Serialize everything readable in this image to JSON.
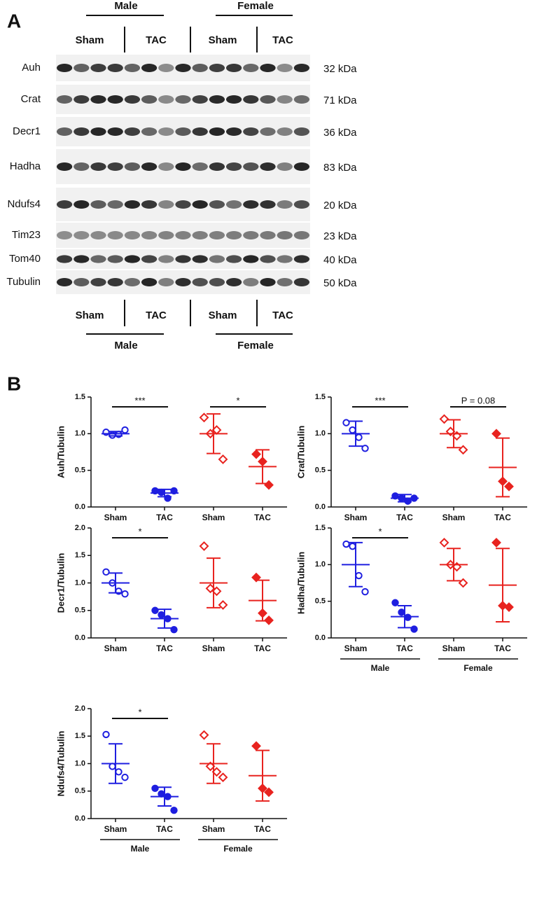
{
  "panel_a": {
    "label": "A",
    "top_groups": [
      "Male",
      "Female"
    ],
    "conditions": [
      "Sham",
      "TAC",
      "Sham",
      "TAC"
    ],
    "bands": [
      {
        "protein": "Auh",
        "size": "32 kDa"
      },
      {
        "protein": "Crat",
        "size": "71 kDa"
      },
      {
        "protein": "Decr1",
        "size": "36 kDa"
      },
      {
        "protein": "Hadha",
        "size": "83 kDa"
      },
      {
        "protein": "Ndufs4",
        "size": "20 kDa"
      },
      {
        "protein": "Tim23",
        "size": "23 kDa"
      },
      {
        "protein": "Tom40",
        "size": "40 kDa"
      },
      {
        "protein": "Tubulin",
        "size": "50 kDa"
      }
    ]
  },
  "panel_b": {
    "label": "B"
  },
  "chart_data": [
    {
      "type": "dotplot",
      "y_label": "Auh/Tubulin",
      "categories": [
        "Sham",
        "TAC",
        "Sham",
        "TAC"
      ],
      "ylim": [
        0,
        1.5
      ],
      "yticks": [
        {
          "value": 0,
          "label": "0.0"
        },
        {
          "value": 0.5,
          "label": "0.5"
        },
        {
          "value": 1,
          "label": "1.0"
        },
        {
          "value": 1.5,
          "label": "1.5"
        }
      ],
      "significance": [
        "***",
        "*"
      ],
      "groups": [
        {
          "color": "#1e1ee0",
          "marker": "circle-open",
          "values": [
            1.02,
            0.98,
            0.99,
            1.05
          ],
          "mean": 1.0,
          "sd": 0.03
        },
        {
          "color": "#1e1ee0",
          "marker": "circle-filled",
          "values": [
            0.22,
            0.2,
            0.12,
            0.22
          ],
          "mean": 0.19,
          "sd": 0.05
        },
        {
          "color": "#e8231f",
          "marker": "diamond-open",
          "values": [
            1.22,
            1.0,
            1.05,
            0.65
          ],
          "mean": 1.0,
          "sd": 0.27
        },
        {
          "color": "#e8231f",
          "marker": "diamond-filled",
          "values": [
            0.72,
            0.62,
            0.3
          ],
          "mean": 0.55,
          "sd": 0.23
        }
      ]
    },
    {
      "type": "dotplot",
      "y_label": "Crat/Tubulin",
      "categories": [
        "Sham",
        "TAC",
        "Sham",
        "TAC"
      ],
      "ylim": [
        0,
        1.5
      ],
      "yticks": [
        {
          "value": 0,
          "label": "0.0"
        },
        {
          "value": 0.5,
          "label": "0.5"
        },
        {
          "value": 1,
          "label": "1.0"
        },
        {
          "value": 1.5,
          "label": "1.5"
        }
      ],
      "significance": [
        "***",
        "P = 0.08"
      ],
      "groups": [
        {
          "color": "#1e1ee0",
          "marker": "circle-open",
          "values": [
            1.15,
            1.05,
            0.95,
            0.8
          ],
          "mean": 1.0,
          "sd": 0.17
        },
        {
          "color": "#1e1ee0",
          "marker": "circle-filled",
          "values": [
            0.15,
            0.12,
            0.08,
            0.12
          ],
          "mean": 0.12,
          "sd": 0.05
        },
        {
          "color": "#e8231f",
          "marker": "diamond-open",
          "values": [
            1.2,
            1.03,
            0.97,
            0.78
          ],
          "mean": 1.0,
          "sd": 0.19
        },
        {
          "color": "#e8231f",
          "marker": "diamond-filled",
          "values": [
            1.0,
            0.35,
            0.28
          ],
          "mean": 0.54,
          "sd": 0.4
        }
      ]
    },
    {
      "type": "dotplot",
      "y_label": "Decr1/Tubulin",
      "categories": [
        "Sham",
        "TAC",
        "Sham",
        "TAC"
      ],
      "ylim": [
        0,
        2
      ],
      "yticks": [
        {
          "value": 0,
          "label": "0.0"
        },
        {
          "value": 0.5,
          "label": "0.5"
        },
        {
          "value": 1,
          "label": "1.0"
        },
        {
          "value": 1.5,
          "label": "1.5"
        },
        {
          "value": 2,
          "label": "2.0"
        }
      ],
      "significance": [
        "*",
        null
      ],
      "groups": [
        {
          "color": "#1e1ee0",
          "marker": "circle-open",
          "values": [
            1.2,
            1.0,
            0.85,
            0.8
          ],
          "mean": 1.0,
          "sd": 0.18
        },
        {
          "color": "#1e1ee0",
          "marker": "circle-filled",
          "values": [
            0.5,
            0.42,
            0.35,
            0.15
          ],
          "mean": 0.35,
          "sd": 0.17
        },
        {
          "color": "#e8231f",
          "marker": "diamond-open",
          "values": [
            1.67,
            0.9,
            0.85,
            0.6
          ],
          "mean": 1.0,
          "sd": 0.45
        },
        {
          "color": "#e8231f",
          "marker": "diamond-filled",
          "values": [
            1.1,
            0.45,
            0.32
          ],
          "mean": 0.68,
          "sd": 0.37
        }
      ]
    },
    {
      "type": "dotplot",
      "y_label": "Hadha/Tubulin",
      "categories": [
        "Sham",
        "TAC",
        "Sham",
        "TAC"
      ],
      "ylim": [
        0,
        1.5
      ],
      "yticks": [
        {
          "value": 0,
          "label": "0.0"
        },
        {
          "value": 0.5,
          "label": "0.5"
        },
        {
          "value": 1,
          "label": "1.0"
        },
        {
          "value": 1.5,
          "label": "1.5"
        }
      ],
      "significance": [
        "*",
        null
      ],
      "group_labels": [
        "Male",
        "Female"
      ],
      "groups": [
        {
          "color": "#1e1ee0",
          "marker": "circle-open",
          "values": [
            1.28,
            1.25,
            0.85,
            0.63
          ],
          "mean": 1.0,
          "sd": 0.3
        },
        {
          "color": "#1e1ee0",
          "marker": "circle-filled",
          "values": [
            0.48,
            0.35,
            0.28,
            0.12
          ],
          "mean": 0.29,
          "sd": 0.15
        },
        {
          "color": "#e8231f",
          "marker": "diamond-open",
          "values": [
            1.3,
            1.0,
            0.97,
            0.75
          ],
          "mean": 1.0,
          "sd": 0.22
        },
        {
          "color": "#e8231f",
          "marker": "diamond-filled",
          "values": [
            1.3,
            0.44,
            0.42
          ],
          "mean": 0.72,
          "sd": 0.5
        }
      ]
    },
    {
      "type": "dotplot",
      "y_label": "Ndufs4/Tubulin",
      "categories": [
        "Sham",
        "TAC",
        "Sham",
        "TAC"
      ],
      "ylim": [
        0,
        2
      ],
      "yticks": [
        {
          "value": 0,
          "label": "0.0"
        },
        {
          "value": 0.5,
          "label": "0.5"
        },
        {
          "value": 1,
          "label": "1.0"
        },
        {
          "value": 1.5,
          "label": "1.5"
        },
        {
          "value": 2,
          "label": "2.0"
        }
      ],
      "significance": [
        "*",
        null
      ],
      "group_labels": [
        "Male",
        "Female"
      ],
      "groups": [
        {
          "color": "#1e1ee0",
          "marker": "circle-open",
          "values": [
            1.53,
            0.95,
            0.85,
            0.75
          ],
          "mean": 1.0,
          "sd": 0.36
        },
        {
          "color": "#1e1ee0",
          "marker": "circle-filled",
          "values": [
            0.55,
            0.45,
            0.4,
            0.15
          ],
          "mean": 0.4,
          "sd": 0.17
        },
        {
          "color": "#e8231f",
          "marker": "diamond-open",
          "values": [
            1.52,
            0.95,
            0.85,
            0.75
          ],
          "mean": 1.0,
          "sd": 0.36
        },
        {
          "color": "#e8231f",
          "marker": "diamond-filled",
          "values": [
            1.32,
            0.55,
            0.48
          ],
          "mean": 0.78,
          "sd": 0.46
        }
      ]
    }
  ]
}
